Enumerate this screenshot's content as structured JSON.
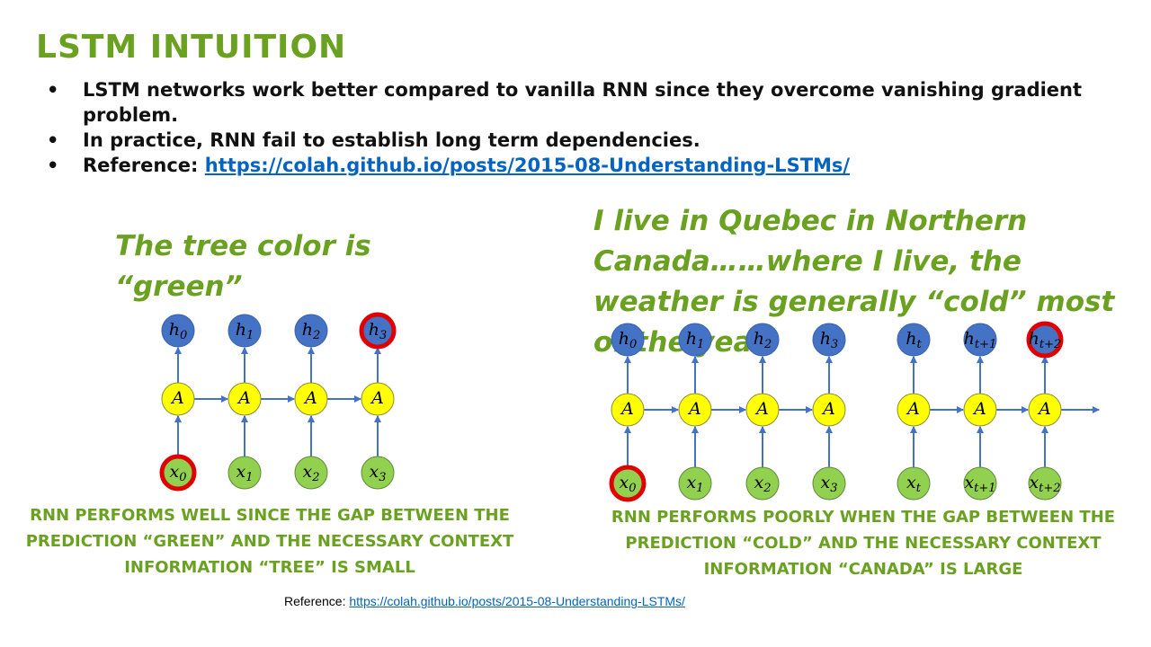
{
  "title": "LSTM INTUITION",
  "bullets": [
    {
      "text": "LSTM networks work better compared to vanilla RNN since they overcome vanishing gradient problem."
    },
    {
      "text": "In practice, RNN fail to establish long term dependencies."
    },
    {
      "prefix": "Reference: ",
      "link": "https://colah.github.io/posts/2015-08-Understanding-LSTMs/"
    }
  ],
  "left_example": {
    "quote": "The tree color is “green”",
    "caption": "RNN PERFORMS WELL SINCE THE GAP BETWEEN THE PREDICTION “GREEN” AND THE NECESSARY CONTEXT INFORMATION “TREE” IS SMALL",
    "hidden_labels": [
      {
        "base": "h",
        "sub": "0"
      },
      {
        "base": "h",
        "sub": "1"
      },
      {
        "base": "h",
        "sub": "2"
      },
      {
        "base": "h",
        "sub": "3"
      }
    ],
    "cell_label": "A",
    "input_labels": [
      {
        "base": "x",
        "sub": "0"
      },
      {
        "base": "x",
        "sub": "1"
      },
      {
        "base": "x",
        "sub": "2"
      },
      {
        "base": "x",
        "sub": "3"
      }
    ],
    "highlighted_output_index": 3,
    "highlighted_input_index": 0
  },
  "right_example": {
    "quote": "I live in Quebec in Northern Canada……where I live, the weather is generally “cold” most of the year",
    "caption": "RNN PERFORMS POORLY WHEN THE GAP BETWEEN THE PREDICTION “COLD” AND THE NECESSARY CONTEXT INFORMATION “CANADA” IS LARGE",
    "hidden_labels": [
      {
        "base": "h",
        "sub": "0"
      },
      {
        "base": "h",
        "sub": "1"
      },
      {
        "base": "h",
        "sub": "2"
      },
      {
        "base": "h",
        "sub": "3"
      },
      {
        "base": "h",
        "sub": "t"
      },
      {
        "base": "h",
        "sub": "t+1"
      },
      {
        "base": "h",
        "sub": "t+2"
      }
    ],
    "cell_label": "A",
    "input_labels": [
      {
        "base": "x",
        "sub": "0"
      },
      {
        "base": "x",
        "sub": "1"
      },
      {
        "base": "x",
        "sub": "2"
      },
      {
        "base": "x",
        "sub": "3"
      },
      {
        "base": "x",
        "sub": "t"
      },
      {
        "base": "x",
        "sub": "t+1"
      },
      {
        "base": "x",
        "sub": "t+2"
      }
    ],
    "highlighted_output_index": 6,
    "highlighted_input_index": 0
  },
  "footer": {
    "prefix": "Reference: ",
    "link": "https://colah.github.io/posts/2015-08-Understanding-LSTMs/"
  },
  "colors": {
    "accent_green": "#6aa121",
    "hidden_blue": "#4472c4",
    "cell_yellow": "#ffff00",
    "input_green": "#92d050",
    "highlight_red": "#e00000",
    "arrow_blue": "#4472c4",
    "link_blue": "#0563c1"
  }
}
